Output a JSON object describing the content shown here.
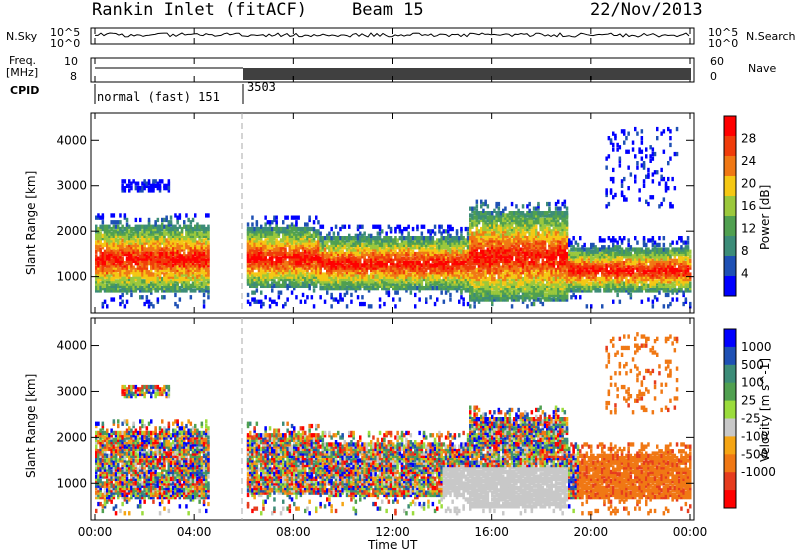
{
  "header": {
    "station": "Rankin Inlet (fitACF)",
    "beam": "Beam 15",
    "date": "22/Nov/2013"
  },
  "small_panels": {
    "nsky_label": "N.Sky",
    "nsearch_label": "N.Search",
    "freq_label_line1": "Freq.",
    "freq_label_line2": "[MHz]",
    "nave_label": "Nave",
    "cpid_label": "CPID",
    "nsky_ticks": [
      "10^5",
      "10^0"
    ],
    "nsearch_ticks": [
      "10^5",
      "10^0"
    ],
    "freq_ticks": [
      "10",
      "8"
    ],
    "nave_ticks": [
      "60",
      "0"
    ],
    "cpid_mode_name": "normal (fast) 151",
    "cpid_mode_code": "3503"
  },
  "colors": {
    "power_scale": [
      "#0000ff",
      "#1e50b4",
      "#3c8c78",
      "#50a050",
      "#9bc83c",
      "#f5c814",
      "#f07814",
      "#f03c0a",
      "#ff0000"
    ],
    "velocity_scale": [
      "#ff0000",
      "#e63c1e",
      "#f07814",
      "#f5a514",
      "#c8c8c8",
      "#9bdc3c",
      "#50a050",
      "#3c8c78",
      "#1e50b4",
      "#0000ff"
    ],
    "ground_scatter": "#bebebe"
  },
  "chart_data": [
    {
      "type": "heatmap",
      "name": "Power",
      "ylabel": "Slant Range [km]",
      "xlabel": "Time UT",
      "xticks": [
        "00:00",
        "04:00",
        "08:00",
        "12:00",
        "16:00",
        "20:00",
        "00:00"
      ],
      "yticks": [
        "1000",
        "2000",
        "3000",
        "4000"
      ],
      "ylim": [
        200,
        4600
      ],
      "xlim_hours": [
        0,
        24
      ],
      "colorbar_label": "Power [dB]",
      "colorbar_ticks": [
        "4",
        "8",
        "12",
        "16",
        "20",
        "24",
        "28"
      ],
      "colorbar_range": [
        0,
        32
      ]
    },
    {
      "type": "heatmap",
      "name": "Velocity",
      "ylabel": "Slant Range [km]",
      "xlabel": "Time UT",
      "xticks": [
        "00:00",
        "04:00",
        "08:00",
        "12:00",
        "16:00",
        "20:00",
        "00:00"
      ],
      "yticks": [
        "1000",
        "2000",
        "3000",
        "4000"
      ],
      "ylim": [
        200,
        4600
      ],
      "xlim_hours": [
        0,
        24
      ],
      "colorbar_label": "Velocity [m s^-1]",
      "colorbar_ticks": [
        "1000",
        "500",
        "100",
        "25",
        "-25",
        "-100",
        "-500",
        "-1000"
      ]
    }
  ]
}
